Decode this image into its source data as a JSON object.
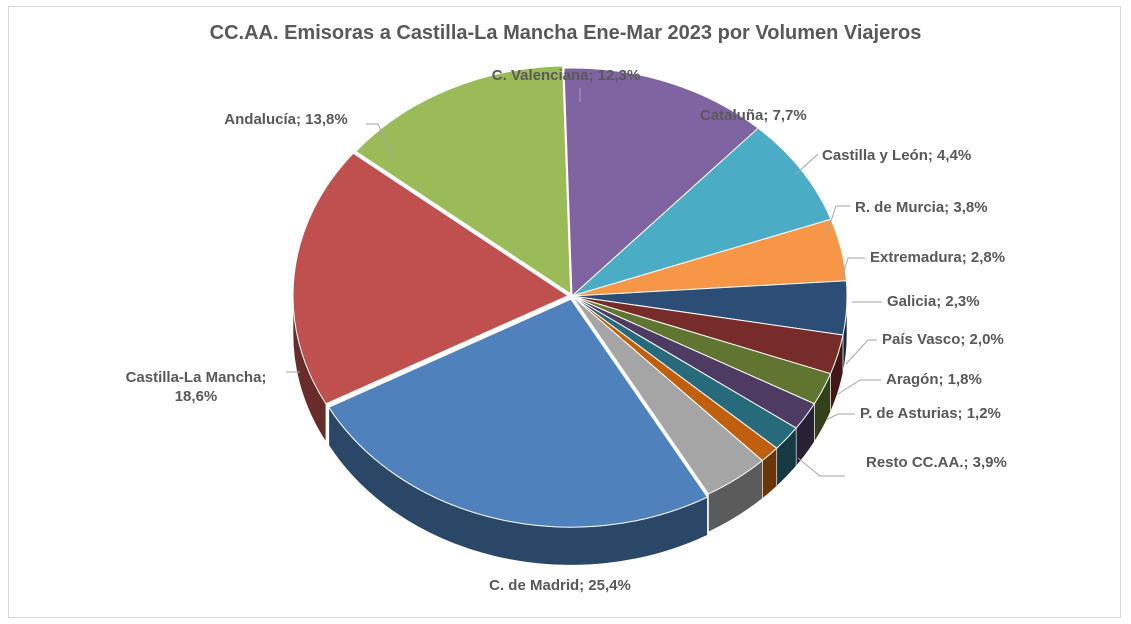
{
  "chart_data": {
    "type": "pie",
    "title": "CC.AA. Emisoras a Castilla-La Mancha Ene-Mar 2023 por Volumen Viajeros",
    "legend": "none",
    "slices": [
      {
        "name": "C. Valenciana",
        "label": "C. Valenciana; 12,3%",
        "value": 12.3,
        "color": "#8064a2"
      },
      {
        "name": "Cataluña",
        "label": "Cataluña; 7,7%",
        "value": 7.7,
        "color": "#4bacc6"
      },
      {
        "name": "Castilla y León",
        "label": "Castilla y León; 4,4%",
        "value": 4.4,
        "color": "#f79646"
      },
      {
        "name": "R. de Murcia",
        "label": "R. de Murcia; 3,8%",
        "value": 3.8,
        "color": "#2c4d75"
      },
      {
        "name": "Extremadura",
        "label": "Extremadura; 2,8%",
        "value": 2.8,
        "color": "#772c2a"
      },
      {
        "name": "Galicia",
        "label": "Galicia; 2,3%",
        "value": 2.3,
        "color": "#5f7530"
      },
      {
        "name": "País Vasco",
        "label": "País Vasco; 2,0%",
        "value": 2.0,
        "color": "#4d3b62"
      },
      {
        "name": "Aragón",
        "label": "Aragón; 1,8%",
        "value": 1.8,
        "color": "#276a7c"
      },
      {
        "name": "P. de Asturias",
        "label": "P. de Asturias; 1,2%",
        "value": 1.2,
        "color": "#c0600e"
      },
      {
        "name": "Resto CC.AA.",
        "label": "Resto CC.AA.; 3,9%",
        "value": 3.9,
        "color": "#a5a5a5"
      },
      {
        "name": "C. de Madrid",
        "label": "C. de Madrid; 25,4%",
        "value": 25.4,
        "color": "#4f81bd"
      },
      {
        "name": "Castilla-La Mancha",
        "label": "Castilla-La Mancha;\n18,6%",
        "value": 18.6,
        "color": "#c0504d"
      },
      {
        "name": "Andalucía",
        "label": "Andalucía; 13,8%",
        "value": 13.8,
        "color": "#9bbb59"
      }
    ]
  }
}
